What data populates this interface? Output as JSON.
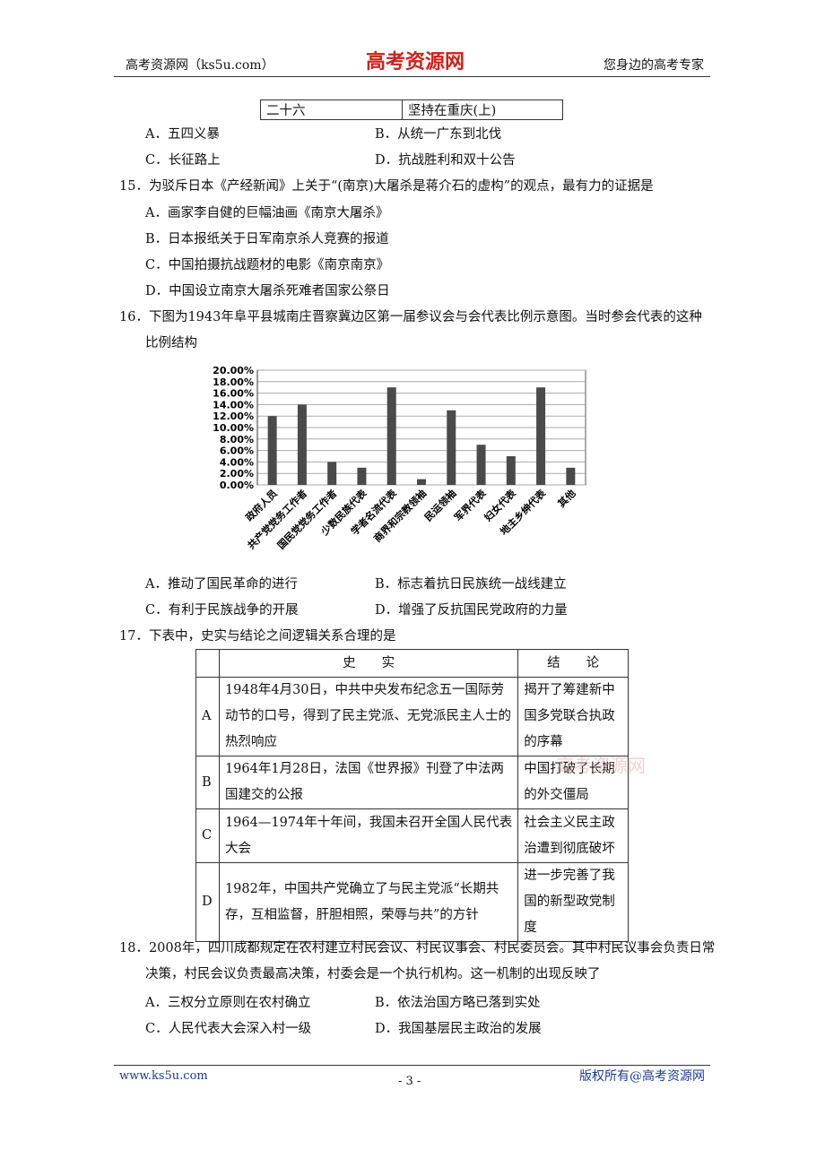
{
  "header": {
    "left": "高考资源网（ks5u.com）",
    "logo": "高考资源网",
    "right": "您身边的高考专家"
  },
  "q14": {
    "table": [
      "二十六",
      "坚持在重庆(上)"
    ],
    "options": [
      "A．五四义暴",
      "B．从统一广东到北伐",
      "C．长征路上",
      "D．抗战胜利和双十公告"
    ]
  },
  "q15": {
    "stem": [
      "15．为驳斥日本《产经新闻》上关于“(南京)大屠杀是蒋介石的虚构”的观点，最有力的证据是"
    ],
    "options": [
      "A．画家李自健的巨幅油画《南京大屠杀》",
      "B．日本报纸关于日军南京杀人竞赛的报道",
      "C．中国拍摄抗战题材的电影《南京南京》",
      "D．中国设立南京大屠杀死难者国家公祭日"
    ]
  },
  "q16": {
    "stem": [
      "16．下图为1943年阜平县城南庄晋察冀边区第一届参议会与会代表比例示意图。当时参会代表的这种",
      "比例结构"
    ],
    "options": [
      "A．推动了国民革命的进行",
      "B．标志着抗日民族统一战线建立",
      "C．有利于民族战争的开展",
      "D．增强了反抗国民党政府的力量"
    ]
  },
  "chart_data": {
    "type": "bar",
    "categories": [
      "政府人员",
      "共产党党务工作者",
      "国民党党务工作者",
      "少数民族代表",
      "学者名流代表",
      "商界和宗教领袖",
      "民运领袖",
      "军界代表",
      "妇女代表",
      "地主乡绅代表",
      "其他"
    ],
    "values": [
      12,
      14,
      4,
      3,
      17,
      1,
      13,
      7,
      5,
      17,
      3
    ],
    "color": "#4a4a4a",
    "ylim": [
      0,
      20
    ],
    "yticks": [
      {
        "value": 0,
        "label": "0.00%"
      },
      {
        "value": 2,
        "label": "2.00%"
      },
      {
        "value": 4,
        "label": "4.00%"
      },
      {
        "value": 6,
        "label": "6.00%"
      },
      {
        "value": 8,
        "label": "8.00%"
      },
      {
        "value": 10,
        "label": "10.00%"
      },
      {
        "value": 12,
        "label": "12.00%"
      },
      {
        "value": 14,
        "label": "14.00%"
      },
      {
        "value": 16,
        "label": "16.00%"
      },
      {
        "value": 18,
        "label": "18.00%"
      },
      {
        "value": 20,
        "label": "20.00%"
      }
    ],
    "grid": true
  },
  "q17": {
    "stem": [
      "17．下表中，史实与结论之间逻辑关系合理的是"
    ],
    "header": [
      "史　　实",
      "结　　论"
    ],
    "rows": [
      {
        "key": "A",
        "fact": [
          "1948年4月30日，中共中央发布纪念五一国际劳",
          "动节的口号，得到了民主党派、无党派民主人士的",
          "热烈响应"
        ],
        "conclusion": [
          "揭开了筹建新中",
          "国多党联合执政",
          "的序幕"
        ]
      },
      {
        "key": "B",
        "fact": [
          "1964年1月28日，法国《世界报》刊登了中法两",
          "国建交的公报"
        ],
        "conclusion": [
          "中国打破了长期",
          "的外交僵局"
        ]
      },
      {
        "key": "C",
        "fact": [
          "1964—1974年十年间，我国未召开全国人民代表",
          "大会"
        ],
        "conclusion": [
          "社会主义民主政",
          "治遭到彻底破坏"
        ]
      },
      {
        "key": "D",
        "fact": [
          "1982年，中国共产党确立了与民主党派“长期共",
          "存，互相监督，肝胆相照，荣辱与共”的方针"
        ],
        "conclusion": [
          "进一步完善了我",
          "国的新型政党制",
          "度"
        ]
      }
    ],
    "watermark": "高考资源网"
  },
  "q18": {
    "stem": [
      "18．2008年，四川成都规定在农村建立村民会议、村民议事会、村民委员会。其中村民议事会负责日常",
      "决策，村民会议负责最高决策，村委会是一个执行机构。这一机制的出现反映了"
    ],
    "options": [
      "A．三权分立原则在农村确立",
      "B．依法治国方略已落到实处",
      "C．人民代表大会深入村一级",
      "D．我国基层民主政治的发展"
    ]
  },
  "footer": {
    "left": "www.ks5u.com",
    "page": "- 3 -",
    "right": "版权所有@高考资源网"
  }
}
